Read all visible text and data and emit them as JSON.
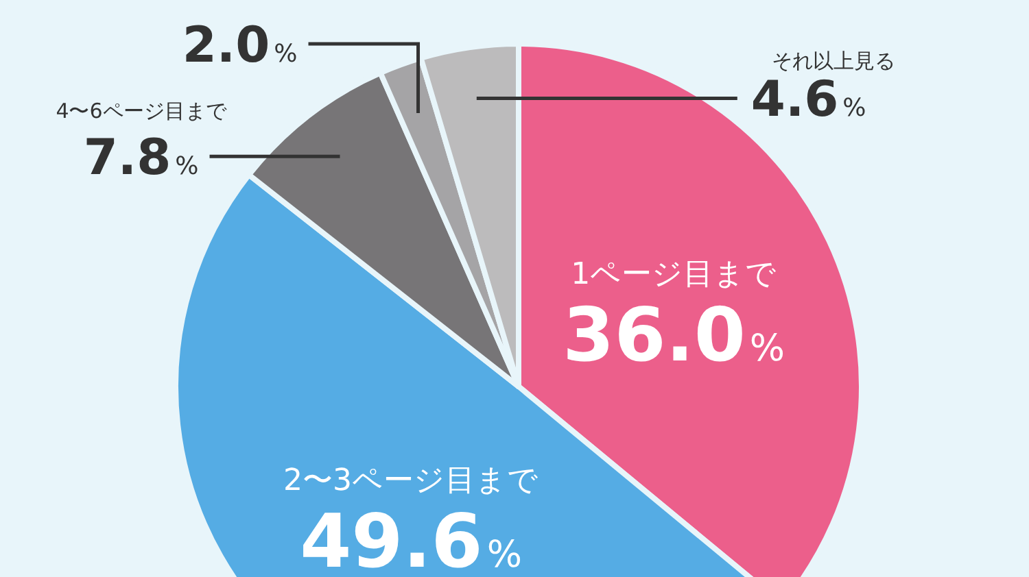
{
  "chart_data": {
    "type": "pie",
    "categories": [
      "1ページ目まで",
      "2〜3ページ目まで",
      "4〜6ページ目まで",
      null,
      "それ以上見る"
    ],
    "values": [
      36.0,
      49.6,
      7.8,
      2.0,
      4.6
    ],
    "colors": [
      "#ec5f8b",
      "#55ace4",
      "#777577",
      "#a5a4a6",
      "#bcbbbc"
    ],
    "value_labels": [
      "36.0%",
      "49.6%",
      "7.8%",
      "2.0%",
      "4.6%"
    ]
  }
}
